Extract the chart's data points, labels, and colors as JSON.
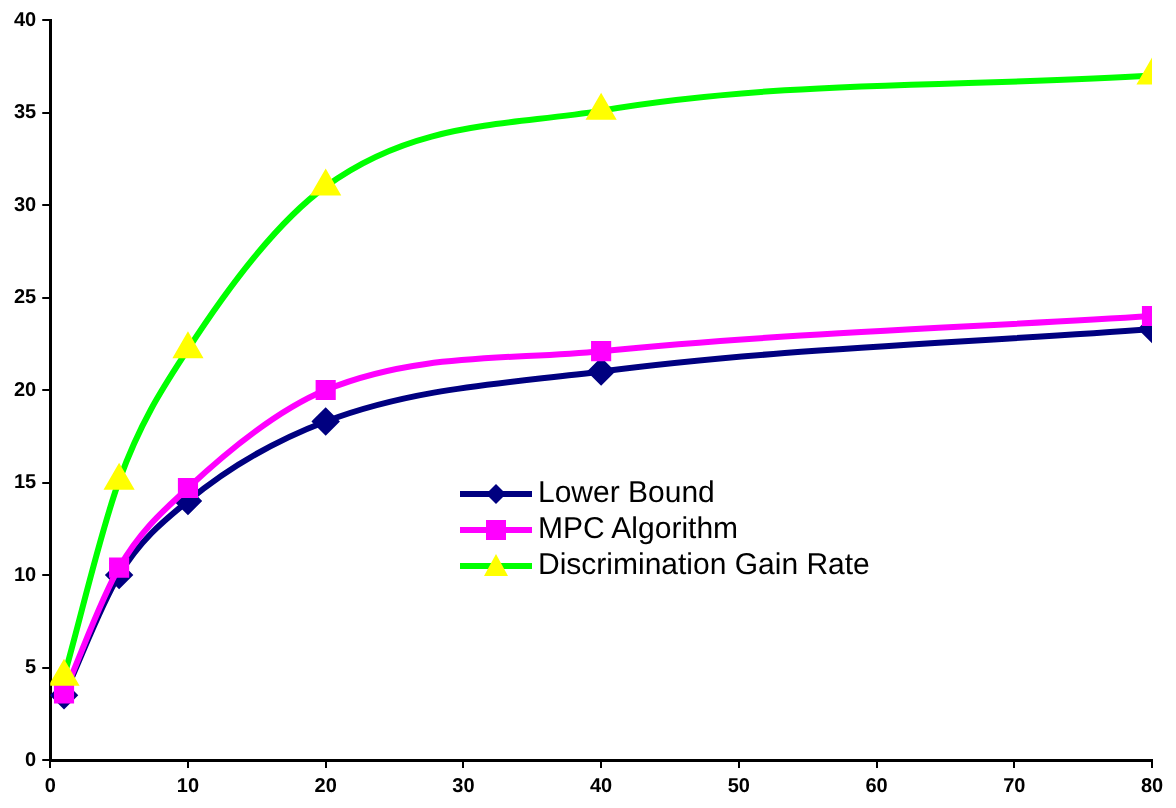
{
  "chart_data": {
    "type": "line",
    "x": [
      1,
      5,
      10,
      20,
      40,
      80
    ],
    "series": [
      {
        "name": "Lower Bound",
        "color": "#000080",
        "marker": "diamond",
        "values": [
          3.5,
          10.0,
          14.0,
          18.3,
          21.0,
          23.3
        ]
      },
      {
        "name": "MPC Algorithm",
        "color": "#ff00ff",
        "marker": "square",
        "values": [
          3.6,
          10.4,
          14.7,
          20.0,
          22.1,
          24.0
        ]
      },
      {
        "name": "Discrimination Gain Rate",
        "color": "#00ff00",
        "colors": [
          "#ffff00",
          "#ffff00",
          "#ffff00",
          "#ffff00",
          "#ffff00",
          "#ffff00"
        ],
        "marker": "triangle",
        "values": [
          4.5,
          15.1,
          22.2,
          31.0,
          35.1,
          37.0
        ]
      }
    ],
    "xlim": [
      0,
      80
    ],
    "xticks": [
      0,
      10,
      20,
      30,
      40,
      50,
      60,
      70,
      80
    ],
    "ylim": [
      0,
      40
    ],
    "yticks": [
      0,
      5,
      10,
      15,
      20,
      25,
      30,
      35,
      40
    ],
    "grid": false,
    "legend": "center",
    "line_style": "solid"
  }
}
